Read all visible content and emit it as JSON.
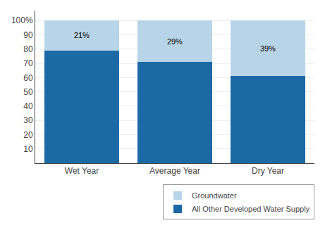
{
  "chart_data": {
    "type": "bar",
    "categories": [
      "Wet Year",
      "Average Year",
      "Dry Year"
    ],
    "series": [
      {
        "name": "All Other Developed Water Supply",
        "color": "#1B6AA5",
        "values": [
          79,
          71,
          61
        ]
      },
      {
        "name": "Groundwater",
        "color": "#B8D4E8",
        "values": [
          21,
          29,
          39
        ],
        "value_labels": [
          "21%",
          "29%",
          "39%"
        ]
      }
    ],
    "stacked": true,
    "data_labels": true,
    "ylim": [
      0,
      107
    ],
    "yticks": [
      10,
      20,
      30,
      40,
      50,
      60,
      70,
      80,
      90,
      {
        "value": 100,
        "label": "100%"
      }
    ],
    "grid": true,
    "legend": "lower right"
  }
}
